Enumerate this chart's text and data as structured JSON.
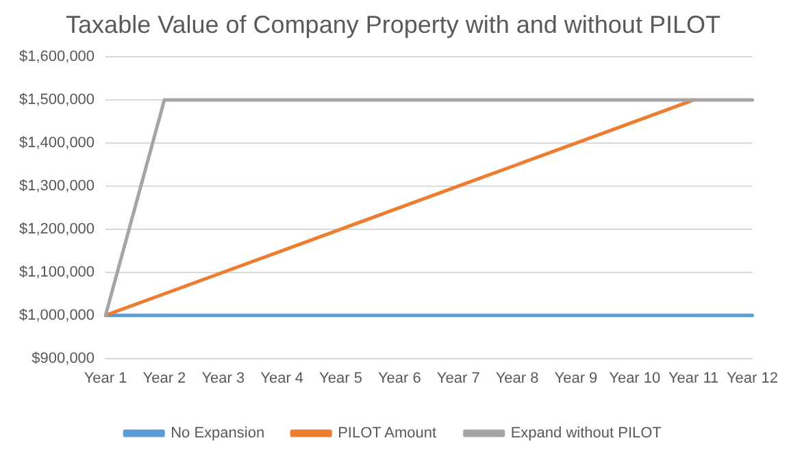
{
  "chart_data": {
    "type": "line",
    "title": "Taxable Value of Company Property with and without PILOT",
    "categories": [
      "Year 1",
      "Year 2",
      "Year 3",
      "Year 4",
      "Year 5",
      "Year 6",
      "Year 7",
      "Year 8",
      "Year 9",
      "Year 10",
      "Year 11",
      "Year 12"
    ],
    "series": [
      {
        "name": "No Expansion",
        "color": "#5b9bd5",
        "values": [
          1000000,
          1000000,
          1000000,
          1000000,
          1000000,
          1000000,
          1000000,
          1000000,
          1000000,
          1000000,
          1000000,
          1000000
        ]
      },
      {
        "name": "PILOT Amount",
        "color": "#ed7d31",
        "values": [
          1000000,
          1050000,
          1100000,
          1150000,
          1200000,
          1250000,
          1300000,
          1350000,
          1400000,
          1450000,
          1500000,
          null
        ]
      },
      {
        "name": "Expand without PILOT",
        "color": "#a5a5a5",
        "values": [
          1000000,
          1500000,
          1500000,
          1500000,
          1500000,
          1500000,
          1500000,
          1500000,
          1500000,
          1500000,
          1500000,
          1500000
        ]
      }
    ],
    "ylim": [
      900000,
      1600000
    ],
    "yticks": [
      {
        "value": 900000,
        "label": "$900,000"
      },
      {
        "value": 1000000,
        "label": "$1,000,000"
      },
      {
        "value": 1100000,
        "label": "$1,100,000"
      },
      {
        "value": 1200000,
        "label": "$1,200,000"
      },
      {
        "value": 1300000,
        "label": "$1,300,000"
      },
      {
        "value": 1400000,
        "label": "$1,400,000"
      },
      {
        "value": 1500000,
        "label": "$1,500,000"
      },
      {
        "value": 1600000,
        "label": "$1,600,000"
      }
    ],
    "grid": "y",
    "legend": "bottom",
    "marker": "none",
    "line_style": "solid"
  }
}
